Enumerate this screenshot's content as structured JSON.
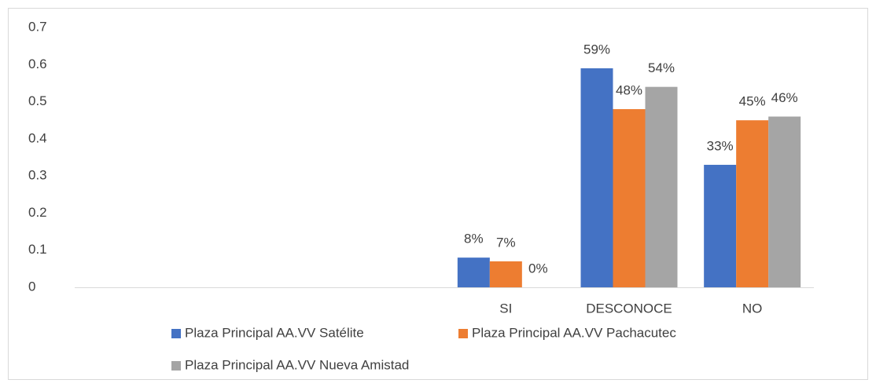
{
  "chart_data": {
    "type": "bar",
    "categories": [
      null,
      null,
      null,
      "SI",
      "DESCONOCE",
      "NO"
    ],
    "series": [
      {
        "name": "Plaza Principal AA.VV Satélite",
        "color": "#4472c4",
        "values": [
          null,
          null,
          null,
          0.08,
          0.59,
          0.33
        ],
        "value_labels": [
          null,
          null,
          null,
          "8%",
          "59%",
          "33%"
        ]
      },
      {
        "name": "Plaza Principal AA.VV Pachacutec",
        "color": "#ed7d31",
        "values": [
          null,
          null,
          null,
          0.07,
          0.48,
          0.45
        ],
        "value_labels": [
          null,
          null,
          null,
          "7%",
          "48%",
          "45%"
        ]
      },
      {
        "name": "Plaza Principal AA.VV Nueva Amistad",
        "color": "#a5a5a5",
        "values": [
          null,
          null,
          null,
          0,
          0.54,
          0.46
        ],
        "value_labels": [
          null,
          null,
          null,
          "0%",
          "54%",
          "46%"
        ]
      }
    ],
    "ylim": [
      0,
      0.7
    ],
    "yticks": [
      0,
      0.1,
      0.2,
      0.3,
      0.4,
      0.5,
      0.6,
      0.7
    ],
    "grid": false,
    "legend": "bottom"
  }
}
